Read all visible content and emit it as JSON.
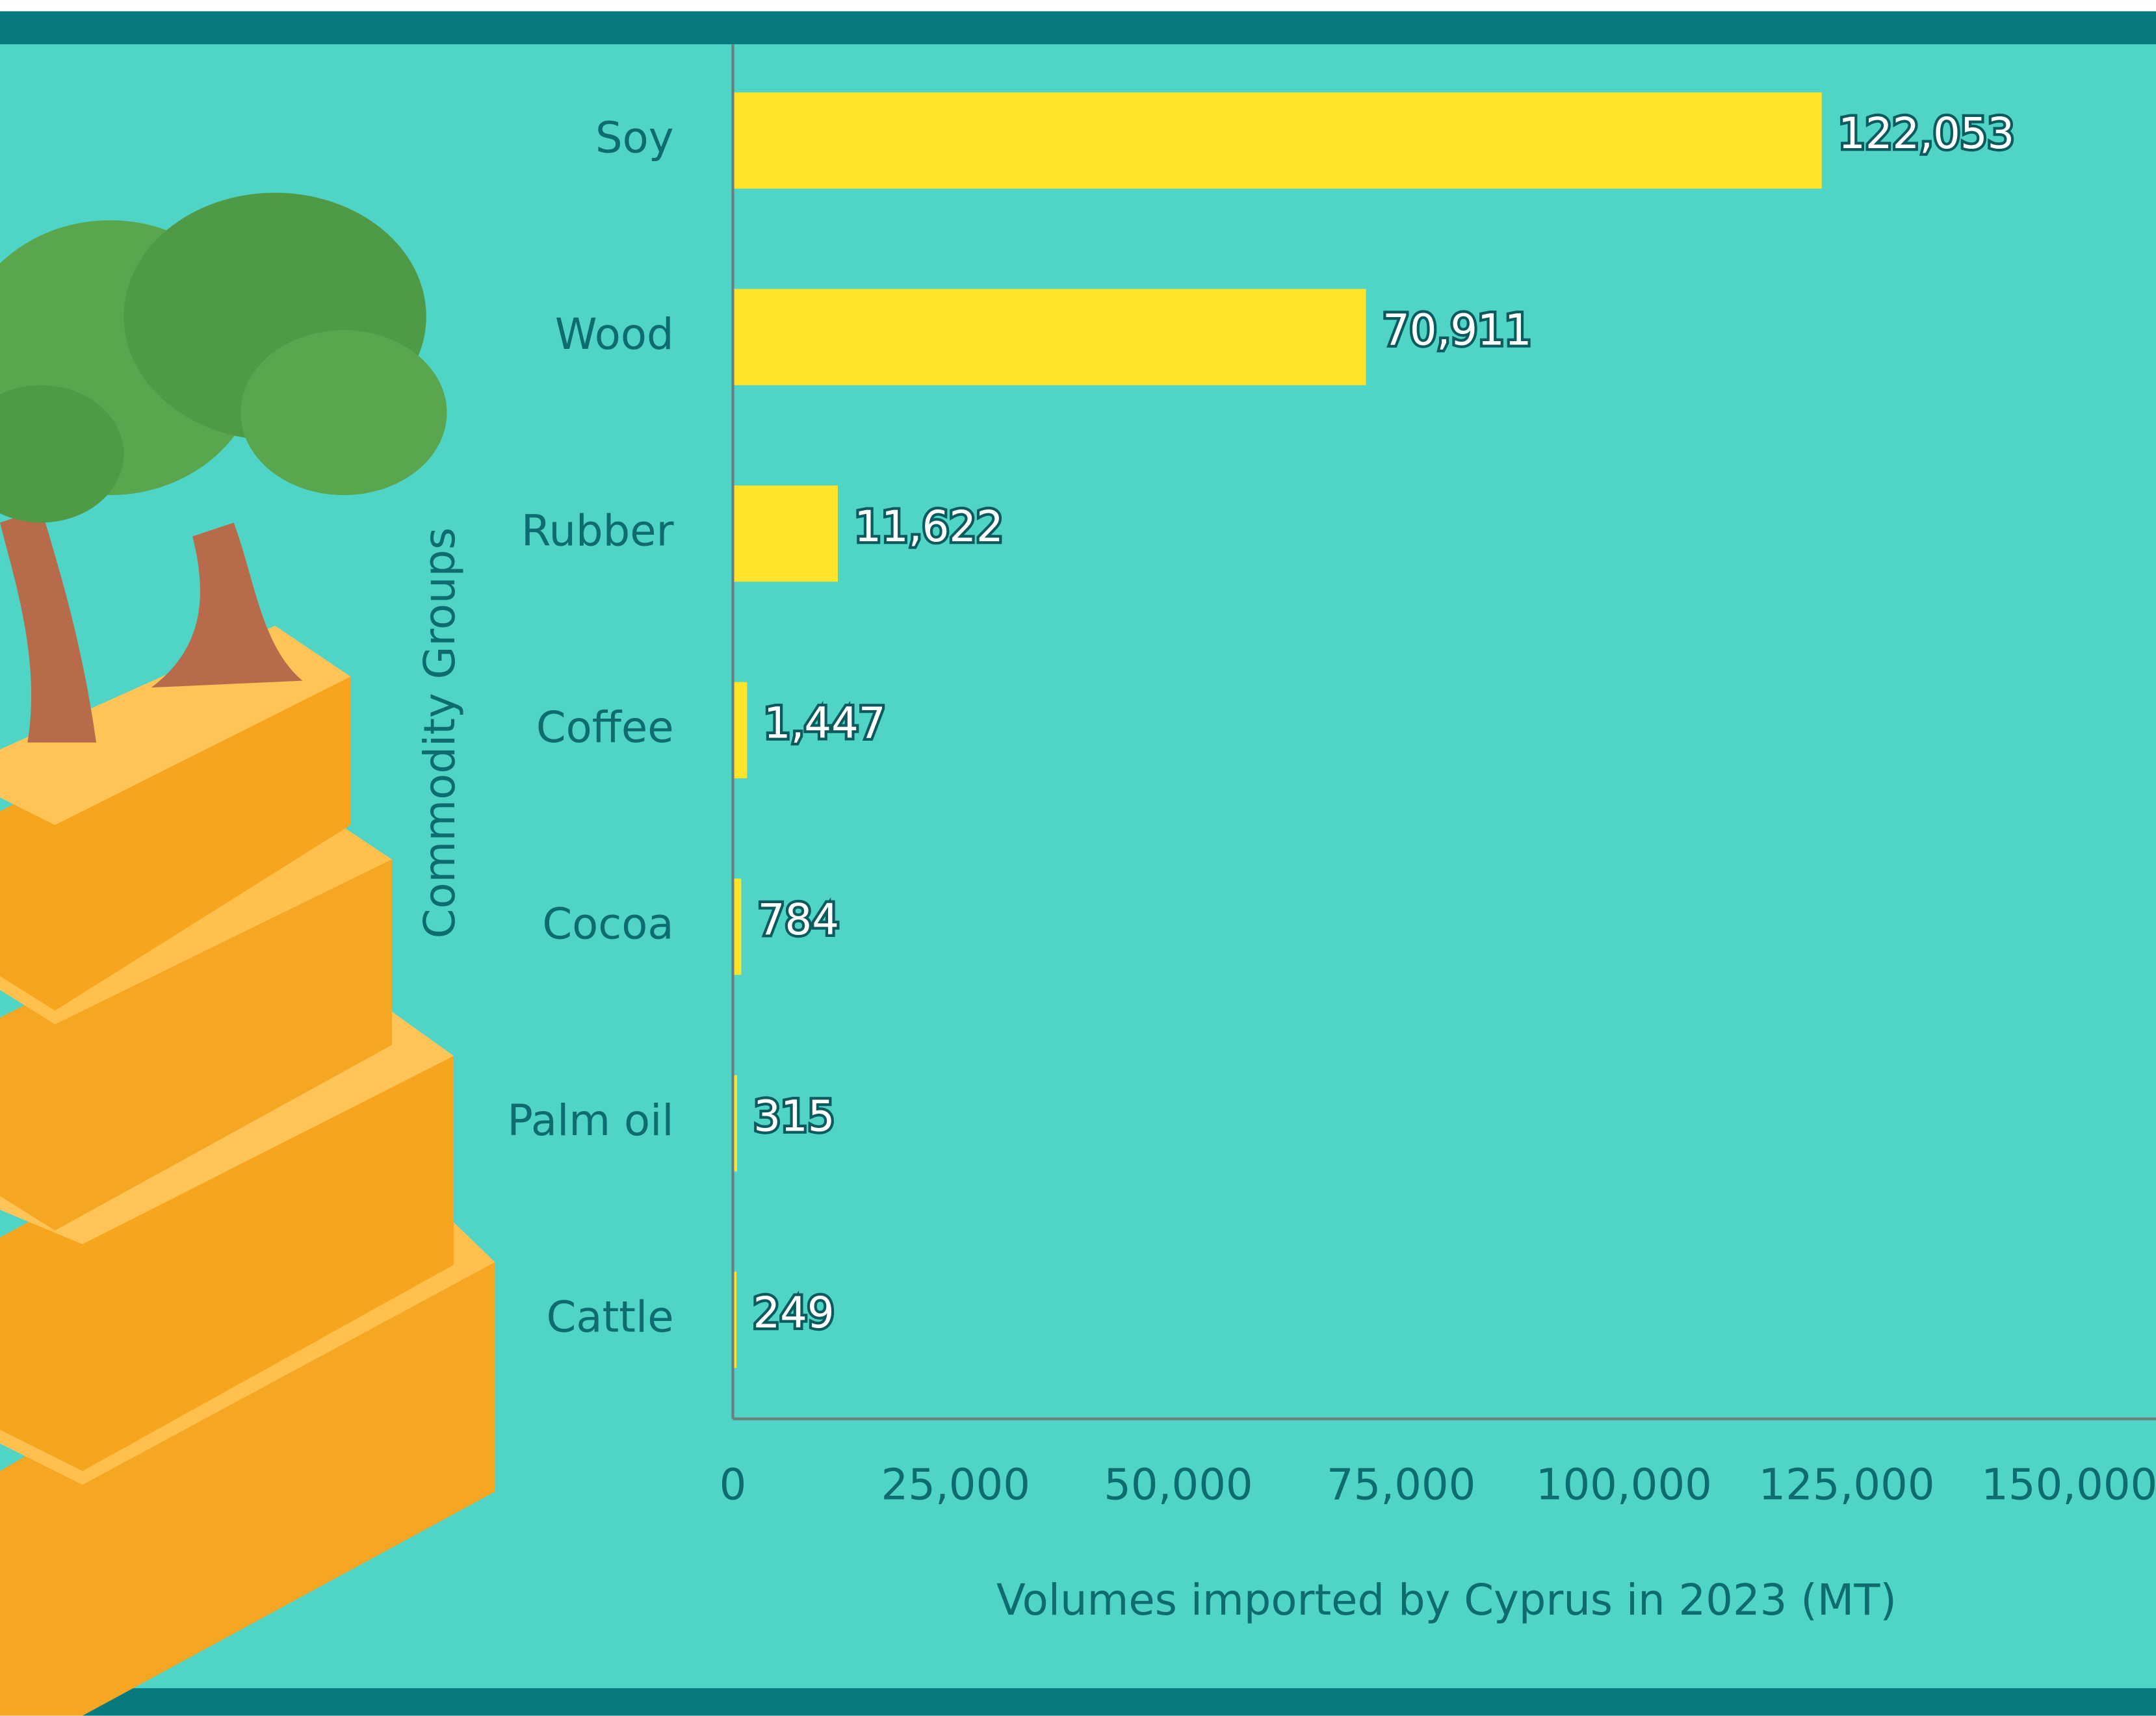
{
  "chart_data": {
    "type": "barh",
    "categories": [
      "Soy",
      "Wood",
      "Rubber",
      "Coffee",
      "Cocoa",
      "Palm oil",
      "Cattle"
    ],
    "values": [
      122053,
      70911,
      11622,
      1447,
      784,
      315,
      249
    ],
    "value_labels": [
      "122,053",
      "70,911",
      "11,622",
      "1,447",
      "784",
      "315",
      "249"
    ],
    "color": "#ffe42a",
    "xlim": [
      0,
      150000
    ],
    "xticks": [
      0,
      {
        "value": 25000,
        "label": "25,000"
      },
      {
        "value": 50000,
        "label": "50,000"
      },
      {
        "value": 75000,
        "label": "75,000"
      },
      {
        "value": 100000,
        "label": "100,000"
      },
      {
        "value": 125000,
        "label": "125,000"
      },
      {
        "value": 150000,
        "label": "150,000"
      }
    ],
    "xlabel": "Volumes imported by Cyprus in 2023 (MT)",
    "ylabel": "Commodity Groups",
    "grid": false
  }
}
